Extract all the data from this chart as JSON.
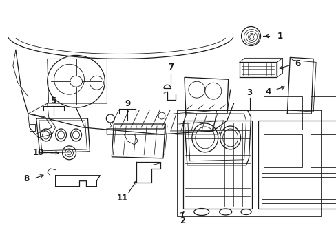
{
  "bg_color": "#ffffff",
  "line_color": "#1a1a1a",
  "figsize": [
    4.89,
    3.6
  ],
  "dpi": 100,
  "lw_main": 0.9,
  "lw_thin": 0.6,
  "lw_thick": 1.2,
  "fontsize_label": 8.5
}
